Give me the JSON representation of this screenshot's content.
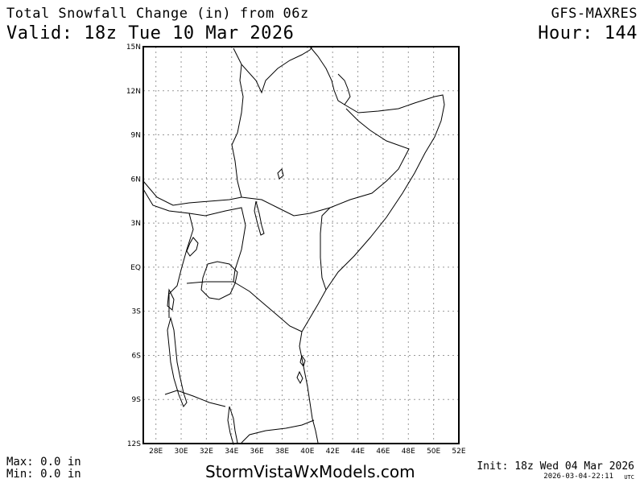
{
  "header": {
    "title": "Total Snowfall Change (in) from 06z",
    "valid": "Valid: 18z Tue 10 Mar 2026",
    "model": "GFS-MAXRES",
    "hour": "Hour: 144"
  },
  "footer": {
    "max": "Max: 0.0 in",
    "min": "Min: 0.0 in",
    "brand": "StormVistaWxModels.com",
    "init": "Init: 18z Wed 04 Mar 2026",
    "stamp": "2026-03-04-22:11",
    "stamp_tz": "UTC"
  },
  "map": {
    "lon_range": [
      27,
      52
    ],
    "lat_range": [
      -12,
      15
    ],
    "lon_ticks": [
      {
        "value": 28,
        "label": "28E"
      },
      {
        "value": 30,
        "label": "30E"
      },
      {
        "value": 32,
        "label": "32E"
      },
      {
        "value": 34,
        "label": "34E"
      },
      {
        "value": 36,
        "label": "36E"
      },
      {
        "value": 38,
        "label": "38E"
      },
      {
        "value": 40,
        "label": "40E"
      },
      {
        "value": 42,
        "label": "42E"
      },
      {
        "value": 44,
        "label": "44E"
      },
      {
        "value": 46,
        "label": "46E"
      },
      {
        "value": 48,
        "label": "48E"
      },
      {
        "value": 50,
        "label": "50E"
      },
      {
        "value": 52,
        "label": "52E"
      }
    ],
    "lat_ticks": [
      {
        "value": 15,
        "label": "15N"
      },
      {
        "value": 12,
        "label": "12N"
      },
      {
        "value": 9,
        "label": "9N"
      },
      {
        "value": 6,
        "label": "6N"
      },
      {
        "value": 3,
        "label": "3N"
      },
      {
        "value": 0,
        "label": "EQ"
      },
      {
        "value": -3,
        "label": "3S"
      },
      {
        "value": -6,
        "label": "6S"
      },
      {
        "value": -9,
        "label": "9S"
      },
      {
        "value": -12,
        "label": "12S"
      }
    ],
    "grid": true
  }
}
